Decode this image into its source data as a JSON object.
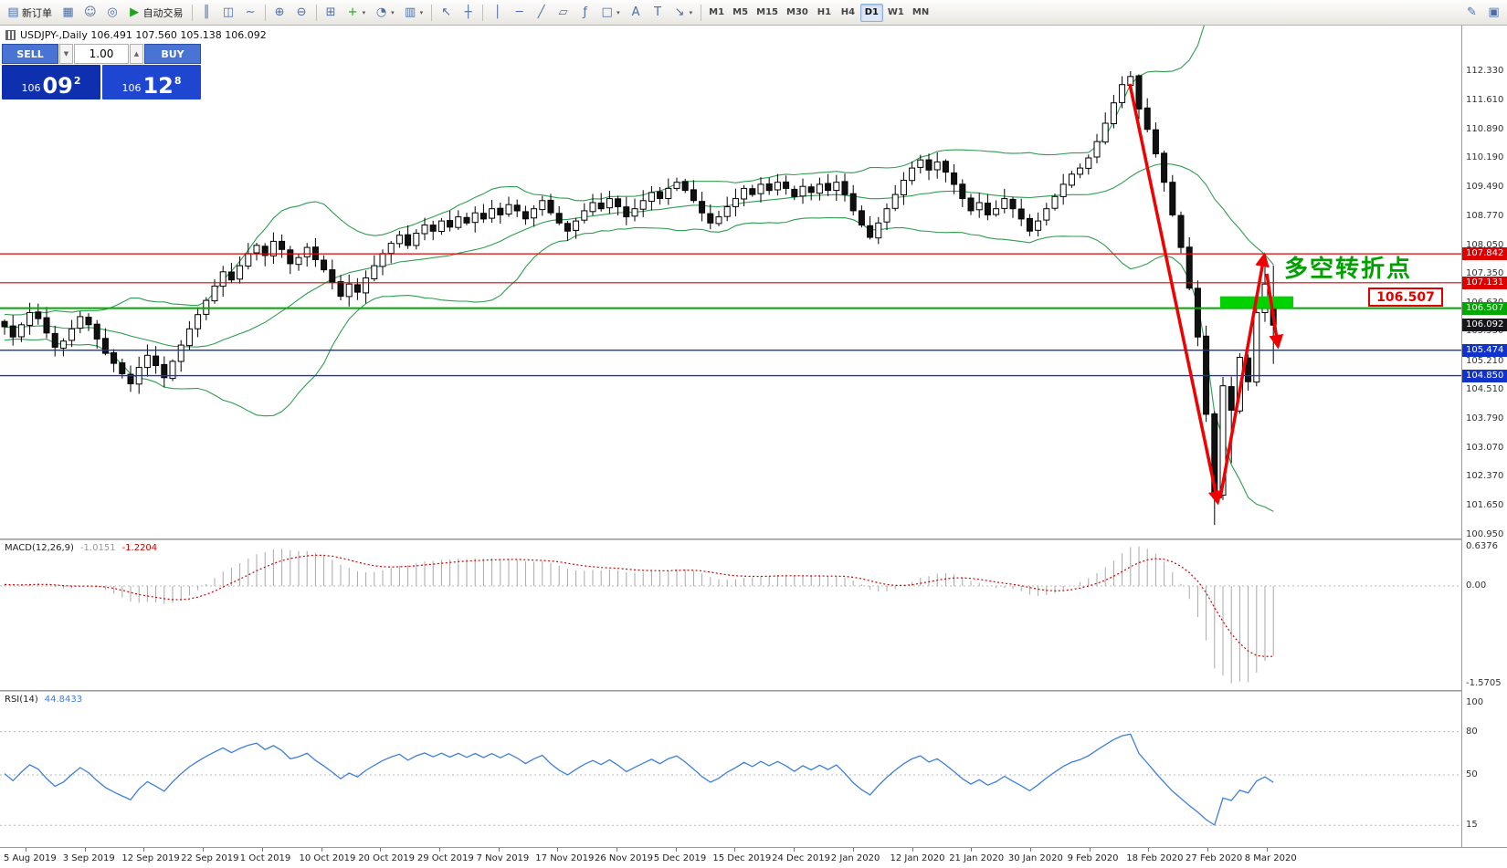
{
  "colors": {
    "accent_red": "#f00000",
    "accent_green": "#00a000",
    "lime": "#00d300",
    "bollinger": "#2e9e50",
    "macd_hist": "#a8a8a8",
    "macd_signal": "#d40000",
    "rsi_line": "#3e7fd9",
    "candle_up": "#ffffff",
    "candle_down": "#111111",
    "badge_current": "#16161a"
  },
  "toolbar": {
    "caret_glyph": "▾",
    "left_buttons": [
      {
        "name": "new-order-button",
        "glyph": "▤",
        "label": "新订单"
      },
      {
        "name": "charts-window-button",
        "glyph": "▦"
      },
      {
        "name": "market-watch-button",
        "glyph": "☺"
      },
      {
        "name": "community-button",
        "glyph": "◎"
      },
      {
        "name": "autotrading-button",
        "glyph": "▶",
        "glyph_color": "#1fa31f",
        "label": "自动交易"
      }
    ],
    "tool_groups": [
      {
        "items": [
          {
            "name": "bar-chart-button",
            "glyph": "║"
          },
          {
            "name": "candlestick-button",
            "glyph": "◫"
          },
          {
            "name": "line-chart-button",
            "glyph": "∼"
          }
        ]
      },
      {
        "items": [
          {
            "name": "zoom-in-button",
            "glyph": "⊕"
          },
          {
            "name": "zoom-out-button",
            "glyph": "⊖"
          }
        ]
      },
      {
        "items": [
          {
            "name": "tile-windows-button",
            "glyph": "⊞"
          },
          {
            "name": "indicators-button",
            "glyph": "+",
            "glyph_color": "#1fa31f",
            "caret": true
          },
          {
            "name": "periods-button",
            "glyph": "◔",
            "caret": true
          },
          {
            "name": "templates-button",
            "glyph": "▥",
            "caret": true
          }
        ]
      },
      {
        "items": [
          {
            "name": "cursor-button",
            "glyph": "↖"
          },
          {
            "name": "crosshair-button",
            "glyph": "┼"
          }
        ]
      },
      {
        "items": [
          {
            "name": "vertical-line-button",
            "glyph": "│"
          },
          {
            "name": "horizontal-line-button",
            "glyph": "─"
          },
          {
            "name": "trendline-button",
            "glyph": "╱"
          },
          {
            "name": "channel-button",
            "glyph": "▱"
          },
          {
            "name": "fibonacci-button",
            "glyph": "ƒ"
          },
          {
            "name": "shapes-button",
            "glyph": "□",
            "caret": true
          },
          {
            "name": "text-button",
            "glyph": "A"
          },
          {
            "name": "label-button",
            "glyph": "T"
          },
          {
            "name": "arrows-button",
            "glyph": "↘",
            "caret": true
          }
        ]
      }
    ],
    "timeframes": [
      "M1",
      "M5",
      "M15",
      "M30",
      "H1",
      "H4",
      "D1",
      "W1",
      "MN"
    ],
    "active_timeframe": "D1",
    "right_buttons": [
      {
        "name": "draw-button",
        "glyph": "✎"
      },
      {
        "name": "window-layout-button",
        "glyph": "▣"
      }
    ]
  },
  "chart": {
    "symbol_info": "USDJPY-,Daily  106.491 107.560 105.138 106.092",
    "trade_panel": {
      "sell_label": "SELL",
      "buy_label": "BUY",
      "volume": "1.00",
      "spin_down": "▼",
      "spin_up": "▲",
      "sell_price": {
        "small": "106",
        "big": "09",
        "sup": "2"
      },
      "buy_price": {
        "small": "106",
        "big": "12",
        "sup": "8"
      }
    },
    "annotations": {
      "turning_point_text": "多空转折点",
      "level_box": "106.507"
    },
    "current_price": {
      "value": 106.092,
      "label": "106.092"
    }
  },
  "macd": {
    "label": "MACD(12,26,9)",
    "value1": "-1.0151",
    "value2": "-1.2204",
    "ticks": [
      {
        "v": 0.6376,
        "t": "0.6376"
      },
      {
        "v": 0,
        "t": "0.00"
      },
      {
        "v": -1.5705,
        "t": "-1.5705"
      }
    ]
  },
  "rsi": {
    "label": "RSI(14)",
    "value": "44.8433",
    "levels": [
      80,
      50,
      15
    ],
    "ticks": [
      {
        "v": 100,
        "t": "100"
      },
      {
        "v": 80,
        "t": "80"
      },
      {
        "v": 50,
        "t": "50"
      },
      {
        "v": 15,
        "t": "15"
      }
    ]
  },
  "timeline": {
    "dates": [
      "5 Aug 2019",
      "3 Sep 2019",
      "12 Sep 2019",
      "22 Sep 2019",
      "1 Oct 2019",
      "10 Oct 2019",
      "20 Oct 2019",
      "29 Oct 2019",
      "7 Nov 2019",
      "17 Nov 2019",
      "26 Nov 2019",
      "5 Dec 2019",
      "15 Dec 2019",
      "24 Dec 2019",
      "2 Jan 2020",
      "12 Jan 2020",
      "21 Jan 2020",
      "30 Jan 2020",
      "9 Feb 2020",
      "18 Feb 2020",
      "27 Feb 2020",
      "8 Mar 2020"
    ]
  },
  "chart_data": {
    "type": "candlestick",
    "symbol": "USDJPY-",
    "timeframe": "Daily",
    "ohlc_current": {
      "open": 106.491,
      "high": 107.56,
      "low": 105.138,
      "close": 106.092
    },
    "first_open": 106.2,
    "closes": [
      106.05,
      105.8,
      106.1,
      106.4,
      106.25,
      105.9,
      105.55,
      105.7,
      106.0,
      106.3,
      106.1,
      105.75,
      105.4,
      105.15,
      104.9,
      104.65,
      105.05,
      105.35,
      105.1,
      104.8,
      105.2,
      105.6,
      106.0,
      106.35,
      106.7,
      107.05,
      107.4,
      107.2,
      107.55,
      107.85,
      108.05,
      107.8,
      108.15,
      107.95,
      107.6,
      107.75,
      108.0,
      107.7,
      107.45,
      107.15,
      106.8,
      107.1,
      106.9,
      107.25,
      107.55,
      107.85,
      108.1,
      108.3,
      108.05,
      108.35,
      108.55,
      108.4,
      108.65,
      108.5,
      108.75,
      108.6,
      108.85,
      108.7,
      108.95,
      108.8,
      109.05,
      108.9,
      108.7,
      108.95,
      109.15,
      108.85,
      108.6,
      108.4,
      108.65,
      108.9,
      109.1,
      108.95,
      109.2,
      109.0,
      108.75,
      108.95,
      109.15,
      109.35,
      109.2,
      109.45,
      109.6,
      109.4,
      109.15,
      108.85,
      108.6,
      108.75,
      109.0,
      109.2,
      109.45,
      109.3,
      109.55,
      109.4,
      109.6,
      109.45,
      109.25,
      109.5,
      109.35,
      109.55,
      109.4,
      109.6,
      109.3,
      108.9,
      108.55,
      108.25,
      108.6,
      108.95,
      109.3,
      109.65,
      109.95,
      110.15,
      109.9,
      110.1,
      109.85,
      109.55,
      109.2,
      108.9,
      109.1,
      108.8,
      108.95,
      109.2,
      108.95,
      108.7,
      108.4,
      108.65,
      108.95,
      109.25,
      109.55,
      109.8,
      109.95,
      110.2,
      110.6,
      111.05,
      111.55,
      112.0,
      112.2,
      111.4,
      110.9,
      110.3,
      109.6,
      108.8,
      108.0,
      107.0,
      105.8,
      103.9,
      101.9,
      104.6,
      104.0,
      105.3,
      104.7,
      106.4,
      107.1,
      106.092
    ],
    "warmup_closes": [
      105.9,
      106.1,
      106.3,
      106.0,
      105.8,
      105.6,
      105.9,
      106.2,
      106.4,
      106.1,
      105.9,
      105.7,
      106.0,
      106.2,
      106.0,
      105.8,
      106.1,
      106.3,
      106.2,
      106.0,
      105.9,
      106.1,
      106.2,
      106.0,
      105.8,
      105.9,
      106.1,
      106.3,
      106.1,
      106.0
    ],
    "high_overrides": {
      "134": 112.33,
      "135": 112.25,
      "150": 107.842
    },
    "low_overrides": {
      "15": 104.45,
      "144": 101.18,
      "146": 102.7
    },
    "indicators": {
      "bollinger": {
        "period": 20,
        "deviation": 2
      },
      "macd": {
        "fast": 12,
        "slow": 26,
        "signal": 9,
        "current": [
          -1.0151,
          -1.2204
        ]
      },
      "rsi": {
        "period": 14,
        "current": 44.8433
      }
    },
    "price_ticks": [
      112.33,
      111.61,
      110.89,
      110.19,
      109.49,
      108.77,
      108.05,
      107.35,
      106.63,
      105.93,
      105.21,
      104.51,
      103.79,
      103.07,
      102.37,
      101.65,
      100.95
    ],
    "levels": [
      {
        "price": 107.842,
        "label": "107.842",
        "color": "#dd0000",
        "width": 1.2
      },
      {
        "price": 107.131,
        "label": "107.131",
        "color": "#dd0000",
        "width": 1.2
      },
      {
        "price": 106.507,
        "label": "106.507",
        "color": "#00a800",
        "width": 2
      },
      {
        "price": 105.474,
        "label": "105.474",
        "color": "#1133cc",
        "width": 1.4
      },
      {
        "price": 104.85,
        "label": "104.850",
        "color": "#1133cc",
        "width": 1.4
      }
    ]
  }
}
